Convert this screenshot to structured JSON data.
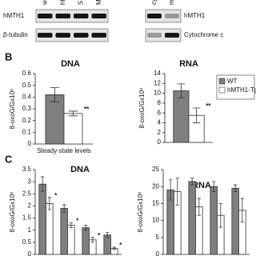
{
  "panel_labels": [
    "B",
    "C"
  ],
  "blots": [
    {
      "columns": [
        "wild",
        "hM",
        "SH",
        "MR"
      ],
      "rows": [
        "hMTH1",
        "β-tubulin"
      ]
    },
    {
      "columns": [
        "cytoso",
        "mitoc"
      ],
      "rows": [
        "hMTH1",
        "Cytochrome c"
      ]
    }
  ],
  "chart_data": [
    {
      "type": "bar",
      "title": "DNA",
      "y_label": "8-oxoG/Gx10⁶",
      "categories": [
        "Steady-state levels"
      ],
      "ylim": [
        0,
        0.6
      ],
      "yticks": [
        0,
        0.1,
        0.2,
        0.3,
        0.4,
        0.5,
        0.6
      ],
      "series": [
        {
          "color": "#7f7f7f",
          "values": [
            0.42
          ],
          "errors": [
            0.06
          ]
        },
        {
          "color": "#ffffff",
          "values": [
            0.26
          ],
          "errors": [
            0.02
          ],
          "significance": [
            "**"
          ]
        }
      ]
    },
    {
      "type": "bar",
      "title": "RNA",
      "y_label": "8-oxoG/Gx10⁶",
      "categories": [
        null
      ],
      "ylim": [
        0,
        14
      ],
      "yticks": [
        0,
        2,
        4,
        6,
        8,
        10,
        12,
        14
      ],
      "legend": true,
      "series": [
        {
          "name": "WT",
          "color": "#7f7f7f",
          "values": [
            10.5
          ],
          "errors": [
            1.4
          ]
        },
        {
          "name": "hMTH1-Tg⁺/⁺",
          "color": "#ffffff",
          "values": [
            5.5
          ],
          "errors": [
            1.5
          ],
          "significance": [
            "**"
          ]
        }
      ]
    },
    {
      "type": "bar",
      "title": "DNA",
      "y_label": "8-oxoG/Gx10⁶",
      "categories": [
        null,
        null,
        null,
        null
      ],
      "ylim": [
        0,
        3.5
      ],
      "yticks": [
        0,
        0.5,
        1,
        1.5,
        2,
        2.5,
        3,
        3.5
      ],
      "series": [
        {
          "color": "#7f7f7f",
          "values": [
            2.9,
            1.9,
            1.1,
            0.8
          ],
          "errors": [
            0.3,
            0.15,
            0.1,
            0.1
          ]
        },
        {
          "color": "#ffffff",
          "values": [
            2.1,
            1.2,
            0.6,
            0.25
          ],
          "errors": [
            0.25,
            0.1,
            0.1,
            0.05
          ],
          "significance": [
            "*",
            "*",
            "*",
            "*"
          ]
        }
      ]
    },
    {
      "type": "bar",
      "title": "RNA",
      "y_label": "8-oxoG/Gx10⁶",
      "categories": [
        null,
        null,
        null,
        null
      ],
      "ylim": [
        0,
        25
      ],
      "yticks": [
        0,
        5,
        10,
        15,
        20,
        25
      ],
      "series": [
        {
          "color": "#7f7f7f",
          "values": [
            19,
            21.5,
            20,
            19.5
          ],
          "errors": [
            3,
            1,
            1.5,
            1
          ]
        },
        {
          "color": "#ffffff",
          "values": [
            18.5,
            14,
            11.5,
            13
          ],
          "errors": [
            4,
            2.5,
            3.5,
            3.5
          ]
        }
      ]
    }
  ]
}
